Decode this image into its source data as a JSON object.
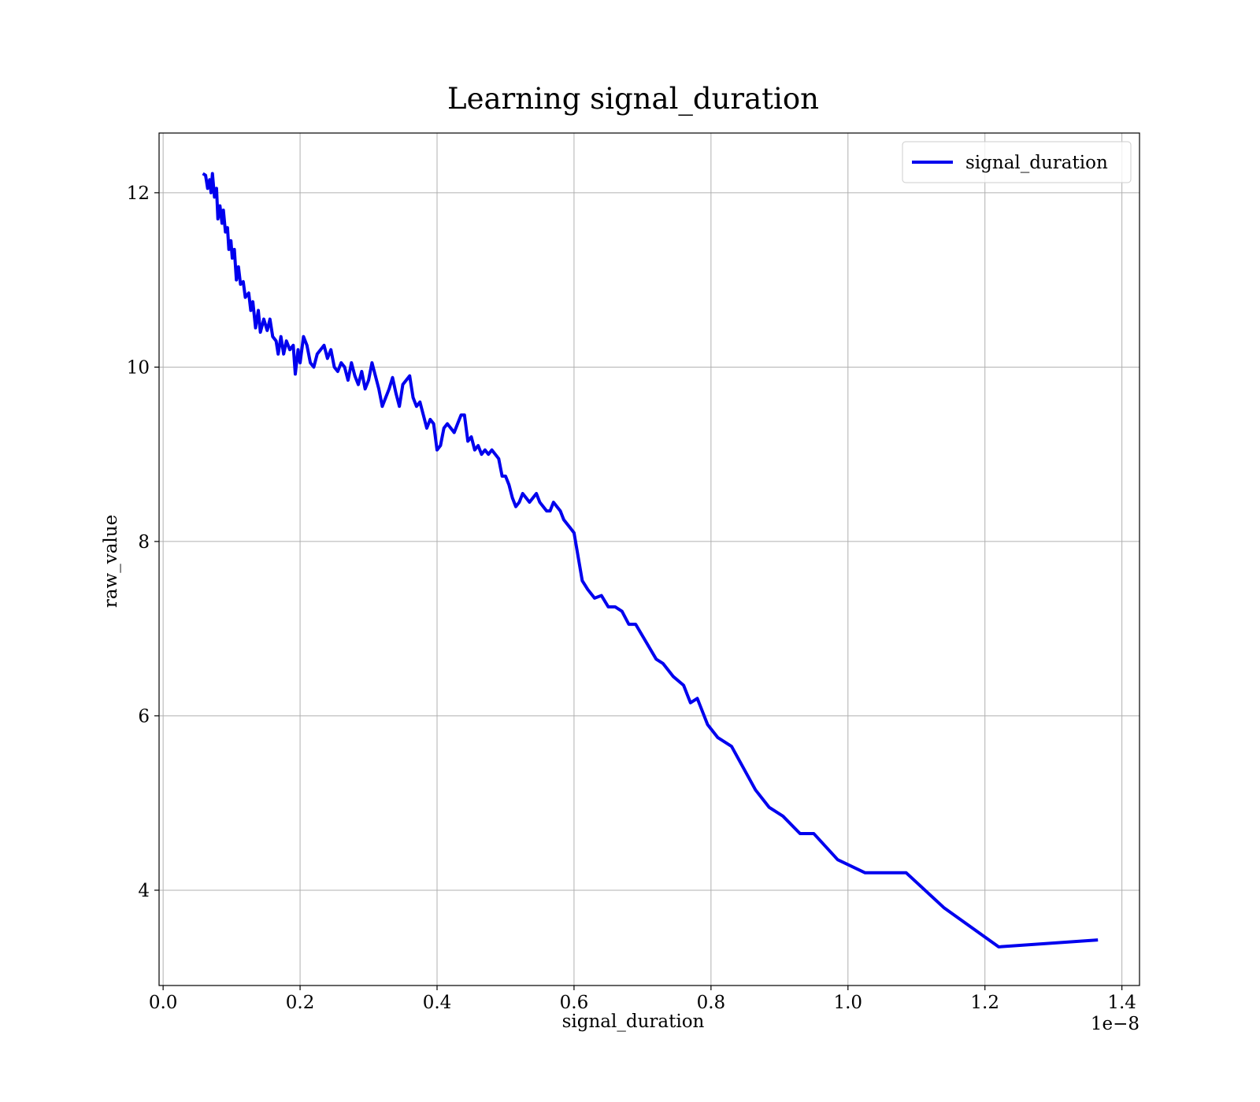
{
  "chart_data": {
    "type": "line",
    "title": "Learning signal_duration",
    "xlabel": "signal_duration",
    "ylabel": "raw_value",
    "x_offset_label": "1e−8",
    "x": [
      0.058,
      0.062,
      0.065,
      0.068,
      0.07,
      0.072,
      0.075,
      0.078,
      0.08,
      0.083,
      0.086,
      0.088,
      0.091,
      0.094,
      0.096,
      0.099,
      0.101,
      0.104,
      0.107,
      0.11,
      0.113,
      0.117,
      0.12,
      0.125,
      0.128,
      0.131,
      0.135,
      0.139,
      0.142,
      0.147,
      0.152,
      0.156,
      0.16,
      0.165,
      0.168,
      0.172,
      0.176,
      0.18,
      0.185,
      0.19,
      0.193,
      0.197,
      0.2,
      0.205,
      0.21,
      0.215,
      0.22,
      0.225,
      0.23,
      0.235,
      0.24,
      0.245,
      0.25,
      0.255,
      0.26,
      0.265,
      0.27,
      0.275,
      0.28,
      0.285,
      0.29,
      0.295,
      0.3,
      0.305,
      0.31,
      0.315,
      0.32,
      0.325,
      0.33,
      0.335,
      0.34,
      0.345,
      0.35,
      0.355,
      0.36,
      0.365,
      0.37,
      0.375,
      0.38,
      0.385,
      0.39,
      0.395,
      0.4,
      0.405,
      0.41,
      0.415,
      0.42,
      0.425,
      0.43,
      0.435,
      0.44,
      0.445,
      0.45,
      0.455,
      0.46,
      0.465,
      0.47,
      0.475,
      0.48,
      0.49,
      0.495,
      0.5,
      0.505,
      0.51,
      0.515,
      0.52,
      0.525,
      0.53,
      0.535,
      0.54,
      0.545,
      0.55,
      0.555,
      0.56,
      0.565,
      0.57,
      0.575,
      0.58,
      0.585,
      0.59,
      0.595,
      0.6,
      0.612,
      0.62,
      0.63,
      0.64,
      0.65,
      0.66,
      0.67,
      0.68,
      0.69,
      0.705,
      0.72,
      0.73,
      0.745,
      0.76,
      0.77,
      0.78,
      0.795,
      0.81,
      0.83,
      0.865,
      0.885,
      0.905,
      0.93,
      0.95,
      0.985,
      1.025,
      1.085,
      1.14,
      1.22,
      1.365
    ],
    "series": [
      {
        "name": "signal_duration",
        "color": "#0000ee",
        "values": [
          12.22,
          12.2,
          12.05,
          12.15,
          12.0,
          12.22,
          11.95,
          12.05,
          11.7,
          11.85,
          11.65,
          11.8,
          11.55,
          11.6,
          11.35,
          11.45,
          11.25,
          11.35,
          11.0,
          11.15,
          10.95,
          10.98,
          10.8,
          10.85,
          10.65,
          10.75,
          10.45,
          10.65,
          10.4,
          10.55,
          10.42,
          10.55,
          10.35,
          10.3,
          10.15,
          10.35,
          10.15,
          10.3,
          10.2,
          10.25,
          9.92,
          10.2,
          10.05,
          10.35,
          10.25,
          10.05,
          10.0,
          10.15,
          10.2,
          10.25,
          10.1,
          10.2,
          10.0,
          9.95,
          10.05,
          10.0,
          9.85,
          10.05,
          9.9,
          9.8,
          9.95,
          9.75,
          9.85,
          10.05,
          9.9,
          9.75,
          9.55,
          9.65,
          9.75,
          9.88,
          9.7,
          9.55,
          9.8,
          9.85,
          9.9,
          9.65,
          9.55,
          9.6,
          9.45,
          9.3,
          9.4,
          9.35,
          9.05,
          9.1,
          9.3,
          9.35,
          9.3,
          9.25,
          9.35,
          9.45,
          9.45,
          9.15,
          9.2,
          9.05,
          9.1,
          9.0,
          9.05,
          9.0,
          9.05,
          8.95,
          8.75,
          8.75,
          8.65,
          8.5,
          8.4,
          8.45,
          8.55,
          8.5,
          8.45,
          8.5,
          8.55,
          8.45,
          8.4,
          8.35,
          8.35,
          8.45,
          8.4,
          8.35,
          8.25,
          8.2,
          8.15,
          8.1,
          7.55,
          7.45,
          7.35,
          7.38,
          7.25,
          7.25,
          7.2,
          7.05,
          7.05,
          6.85,
          6.65,
          6.6,
          6.45,
          6.35,
          6.15,
          6.2,
          5.9,
          5.75,
          5.65,
          5.15,
          4.95,
          4.85,
          4.65,
          4.65,
          4.35,
          4.2,
          4.2,
          3.8,
          3.35,
          3.43
        ]
      }
    ],
    "xlim": [
      -0.0059,
      1.4257
    ],
    "ylim": [
      2.907,
      12.685
    ],
    "xticks": [
      {
        "value": 0,
        "label": "0.0"
      },
      0.2,
      0.4,
      0.6,
      0.8,
      {
        "value": 1,
        "label": "1.0"
      },
      1.2,
      1.4
    ],
    "yticks": [
      4,
      6,
      8,
      10,
      12
    ],
    "grid": true,
    "legend": "upper right"
  }
}
